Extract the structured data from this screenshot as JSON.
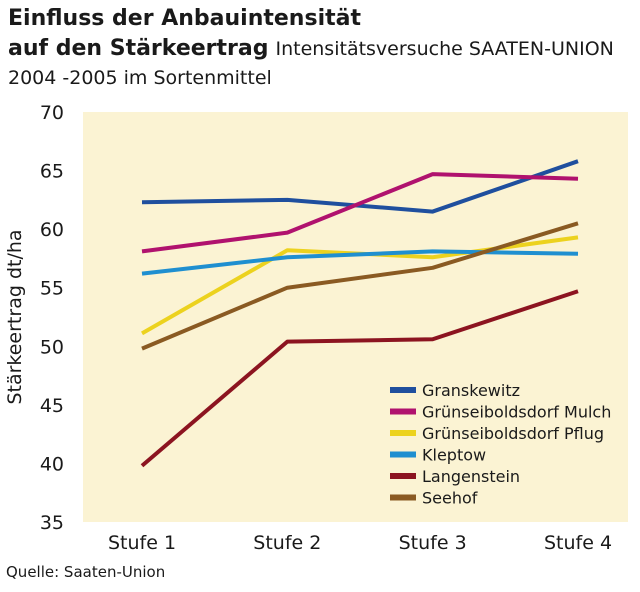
{
  "header": {
    "title_line1": "Einfluss der Anbauintensität",
    "title_line2_bold": "auf den Stärkeertrag",
    "title_line2_rest": "Intensitätsversuche SAATEN-UNION",
    "title_line3": "2004 -2005 im Sortenmittel"
  },
  "footer": {
    "source": "Quelle: Saaten-Union"
  },
  "chart_data": {
    "type": "line",
    "categories": [
      "Stufe 1",
      "Stufe 2",
      "Stufe 3",
      "Stufe 4"
    ],
    "ylabel": "Stärkeertrag dt/ha",
    "xlabel": "",
    "ylim": [
      35,
      70
    ],
    "yticks": [
      35,
      40,
      45,
      50,
      55,
      60,
      65,
      70
    ],
    "grid": false,
    "legend_position": "bottom-right",
    "plot_background": "#fbf3d3",
    "series": [
      {
        "name": "Granskewitz",
        "color": "#1f4f9e",
        "values": [
          62.3,
          62.5,
          61.5,
          65.8
        ]
      },
      {
        "name": "Grünseiboldsdorf Mulch",
        "color": "#b0126e",
        "values": [
          58.1,
          59.7,
          64.7,
          64.3
        ]
      },
      {
        "name": "Grünseiboldsdorf Pflug",
        "color": "#ecd21e",
        "values": [
          51.1,
          58.2,
          57.6,
          59.3
        ]
      },
      {
        "name": "Kleptow",
        "color": "#1f8fd0",
        "values": [
          56.2,
          57.6,
          58.1,
          57.9
        ]
      },
      {
        "name": "Langenstein",
        "color": "#8c1420",
        "values": [
          39.8,
          50.4,
          50.6,
          54.7
        ]
      },
      {
        "name": "Seehof",
        "color": "#8a5a22",
        "values": [
          49.8,
          55.0,
          56.7,
          60.5
        ]
      }
    ]
  }
}
